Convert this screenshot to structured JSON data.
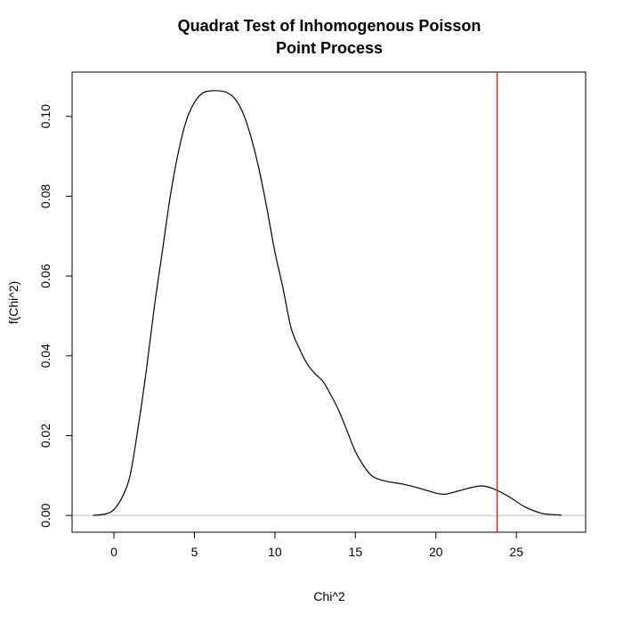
{
  "chart_data": {
    "type": "line",
    "title_lines": [
      "Quadrat Test of Inhomogenous Poisson",
      "Point Process"
    ],
    "xlabel": "Chi^2",
    "ylabel": "f(Chi^2)",
    "xlim": [
      -2.6,
      29.3
    ],
    "ylim": [
      -0.0042,
      0.1111
    ],
    "x_ticks": [
      0,
      5,
      10,
      15,
      20,
      25
    ],
    "x_tick_labels": [
      "0",
      "5",
      "10",
      "15",
      "20",
      "25"
    ],
    "y_ticks": [
      0,
      0.02,
      0.04,
      0.06,
      0.08,
      0.1
    ],
    "y_tick_labels": [
      "0.00",
      "0.02",
      "0.04",
      "0.06",
      "0.08",
      "0.10"
    ],
    "grid": false,
    "legend": "none",
    "series": [
      {
        "color": "#000000",
        "points": [
          [
            -1.3,
            0.0
          ],
          [
            -0.5,
            0.0004
          ],
          [
            0.0,
            0.0015
          ],
          [
            0.5,
            0.0045
          ],
          [
            1.0,
            0.01
          ],
          [
            1.5,
            0.022
          ],
          [
            2.0,
            0.036
          ],
          [
            2.5,
            0.052
          ],
          [
            3.0,
            0.066
          ],
          [
            3.5,
            0.08
          ],
          [
            4.0,
            0.091
          ],
          [
            4.5,
            0.099
          ],
          [
            5.0,
            0.1035
          ],
          [
            5.5,
            0.1058
          ],
          [
            6.0,
            0.1064
          ],
          [
            6.5,
            0.1064
          ],
          [
            7.0,
            0.106
          ],
          [
            7.5,
            0.1045
          ],
          [
            8.0,
            0.101
          ],
          [
            8.5,
            0.095
          ],
          [
            9.0,
            0.087
          ],
          [
            9.5,
            0.077
          ],
          [
            10.0,
            0.066
          ],
          [
            10.5,
            0.057
          ],
          [
            11.0,
            0.047
          ],
          [
            11.5,
            0.042
          ],
          [
            12.0,
            0.038
          ],
          [
            12.5,
            0.0355
          ],
          [
            13.0,
            0.0335
          ],
          [
            13.5,
            0.03
          ],
          [
            14.0,
            0.026
          ],
          [
            14.5,
            0.021
          ],
          [
            15.0,
            0.016
          ],
          [
            15.5,
            0.0125
          ],
          [
            16.0,
            0.01
          ],
          [
            16.5,
            0.009
          ],
          [
            17.0,
            0.0085
          ],
          [
            18.0,
            0.0078
          ],
          [
            19.0,
            0.0068
          ],
          [
            20.0,
            0.0056
          ],
          [
            20.5,
            0.0053
          ],
          [
            21.0,
            0.0057
          ],
          [
            22.0,
            0.0068
          ],
          [
            22.8,
            0.0074
          ],
          [
            23.5,
            0.0068
          ],
          [
            24.5,
            0.0048
          ],
          [
            25.5,
            0.0022
          ],
          [
            26.5,
            0.0006
          ],
          [
            27.0,
            0.0003
          ],
          [
            27.8,
            0.0001
          ]
        ]
      }
    ],
    "vline": {
      "x": 23.8,
      "color": "#ff0000"
    },
    "hline": {
      "y": 0.0,
      "color": "#bebebe"
    },
    "axis_color": "#000000"
  }
}
